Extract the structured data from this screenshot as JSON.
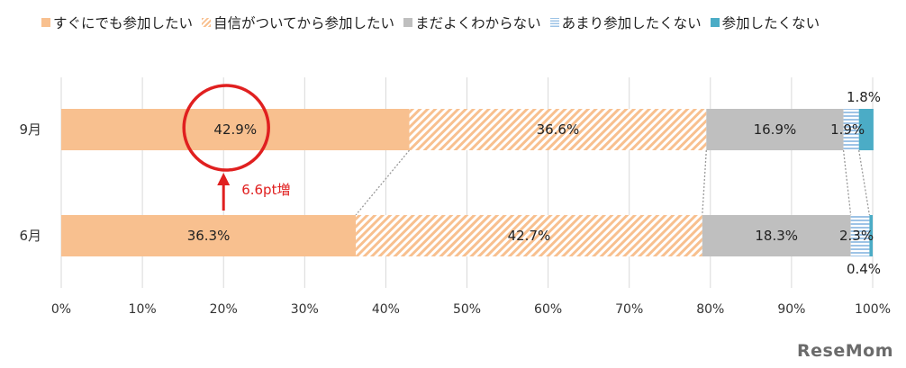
{
  "chart_data": {
    "type": "bar",
    "orientation": "horizontal",
    "stacked": true,
    "categories": [
      "9月",
      "6月"
    ],
    "series": [
      {
        "name": "すぐにでも参加したい",
        "values": [
          42.9,
          36.3
        ],
        "color": "#F8C08F",
        "pattern": "solid"
      },
      {
        "name": "自信がついてから参加したい",
        "values": [
          36.6,
          42.7
        ],
        "color": "#F8C08F",
        "pattern": "hatched"
      },
      {
        "name": "まだよくわからない",
        "values": [
          16.9,
          18.3
        ],
        "color": "#BFBFBF",
        "pattern": "solid"
      },
      {
        "name": "あまり参加したくない",
        "values": [
          1.9,
          2.3
        ],
        "color": "#9DC3E6",
        "pattern": "horizontal-stripes"
      },
      {
        "name": "参加したくない",
        "values": [
          1.8,
          0.4
        ],
        "color": "#4BACC6",
        "pattern": "solid"
      }
    ],
    "data_labels": [
      [
        "42.9%",
        "36.6%",
        "16.9%",
        "1.9%",
        "1.8%"
      ],
      [
        "36.3%",
        "42.7%",
        "18.3%",
        "2.3%",
        "0.4%"
      ]
    ],
    "xlim": [
      0,
      100
    ],
    "x_ticks": [
      "0%",
      "10%",
      "20%",
      "30%",
      "40%",
      "50%",
      "60%",
      "70%",
      "80%",
      "90%",
      "100%"
    ],
    "grid": true,
    "legend_position": "top",
    "annotation": {
      "text": "6.6pt増",
      "color": "#E02020"
    }
  },
  "watermark": "ReseMom"
}
